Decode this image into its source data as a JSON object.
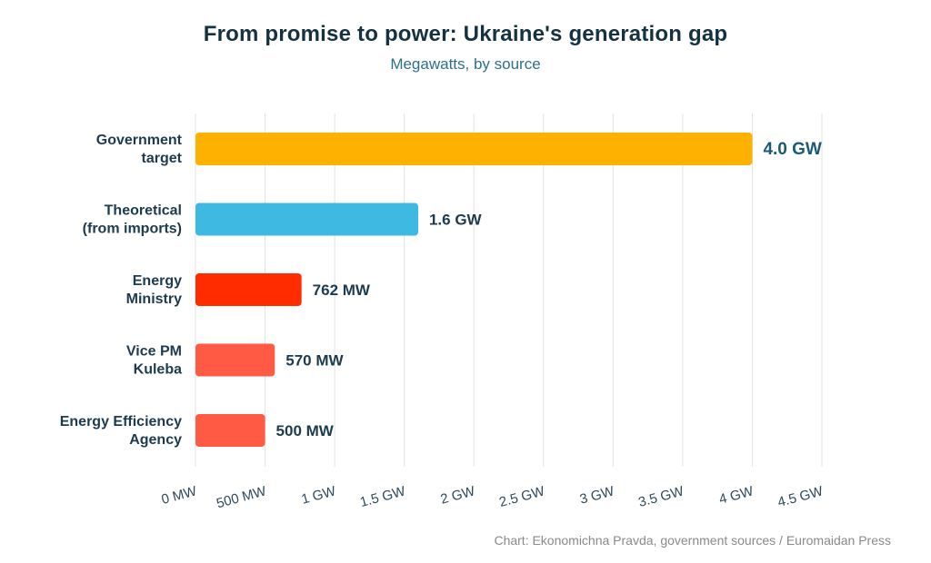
{
  "title": "From promise to power: Ukraine's generation gap",
  "subtitle": "Megawatts, by source",
  "source": "Chart: Ekonomichna Pravda, government sources / Euromaidan Press",
  "chart_data": {
    "type": "bar",
    "orientation": "horizontal",
    "categories": [
      [
        "Government",
        "target"
      ],
      [
        "Theoretical",
        "(from imports)"
      ],
      [
        "Energy",
        "Ministry"
      ],
      [
        "Vice PM",
        "Kuleba"
      ],
      [
        "Energy Efficiency",
        "Agency"
      ]
    ],
    "values": [
      4000,
      1600,
      762,
      570,
      500
    ],
    "value_labels": [
      "4.0 GW",
      "1.6 GW",
      "762 MW",
      "570 MW",
      "500 MW"
    ],
    "colors": [
      "#FDB100",
      "#3DB9E2",
      "#FF2C00",
      "#FF5A43",
      "#FF5A43"
    ],
    "xlim": [
      0,
      4500
    ],
    "ticks": [
      0,
      500,
      1000,
      1500,
      2000,
      2500,
      3000,
      3500,
      4000,
      4500
    ],
    "tick_labels": [
      "0 MW",
      "500 MW",
      "1 GW",
      "1.5 GW",
      "2 GW",
      "2.5 GW",
      "3 GW",
      "3.5 GW",
      "4 GW",
      "4.5 GW"
    ],
    "grid": true
  }
}
